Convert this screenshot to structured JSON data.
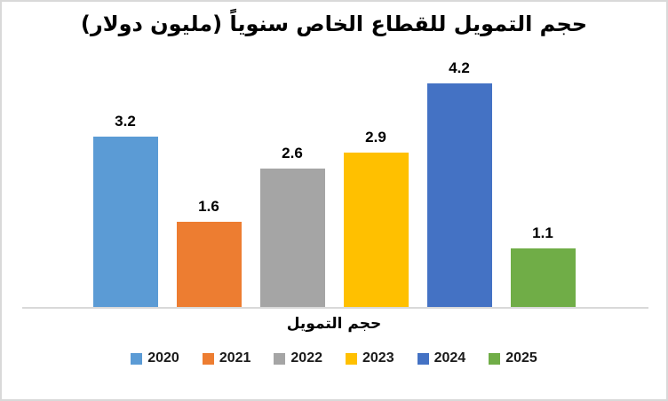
{
  "chart_data": {
    "type": "bar",
    "title": "حجم التمويل للقطاع الخاص سنوياً (مليون دولار)",
    "xlabel": "حجم التمويل",
    "ylabel": "",
    "categories": [
      "2020",
      "2021",
      "2022",
      "2023",
      "2024",
      "2025"
    ],
    "values": [
      3.2,
      1.6,
      2.6,
      2.9,
      4.2,
      1.1
    ],
    "data_labels": [
      "3.2",
      "1.6",
      "2.6",
      "2.9",
      "4.2",
      "1.1"
    ],
    "colors": [
      "#5B9BD5",
      "#ED7D31",
      "#A5A5A5",
      "#FFC000",
      "#4472C4",
      "#70AD47"
    ],
    "ylim": [
      0,
      4.8
    ],
    "grid": false,
    "legend_position": "bottom",
    "axis_line_color": "#D9D9D9",
    "frame_border_color": "#D9D9D9",
    "label_text_color": "#000000"
  }
}
